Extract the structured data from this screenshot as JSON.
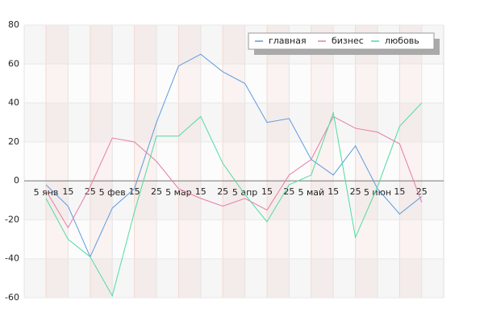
{
  "chart_data": {
    "type": "line",
    "categories": [
      "5 янв",
      "15",
      "25",
      "5 фев",
      "15",
      "25",
      "5 мар",
      "15",
      "25",
      "5 апр",
      "15",
      "25",
      "5 май",
      "15",
      "25",
      "5 июн",
      "15",
      "25"
    ],
    "series": [
      {
        "name": "главная",
        "color": "#5b9bdf",
        "values": [
          -2,
          -13,
          -39,
          -14,
          -4,
          30,
          59,
          65,
          56,
          50,
          30,
          32,
          11,
          3,
          18,
          -4,
          -17,
          -8
        ]
      },
      {
        "name": "бизнес",
        "color": "#e87ca8",
        "values": [
          -5,
          -24,
          -3,
          22,
          20,
          10,
          -4,
          -9,
          -13,
          -9,
          -15,
          3,
          11,
          33,
          27,
          25,
          19,
          -11
        ]
      },
      {
        "name": "любовь",
        "color": "#4fdc9f",
        "values": [
          -9,
          -30,
          -39,
          -59,
          -16,
          23,
          23,
          33,
          9,
          -7,
          -21,
          -2,
          3,
          35,
          -29,
          -3,
          28,
          40
        ]
      }
    ],
    "ylim": [
      -60,
      80
    ],
    "yticks": [
      -60,
      -40,
      -20,
      0,
      20,
      40,
      60,
      80
    ],
    "grid": true,
    "legend": "top-right"
  }
}
